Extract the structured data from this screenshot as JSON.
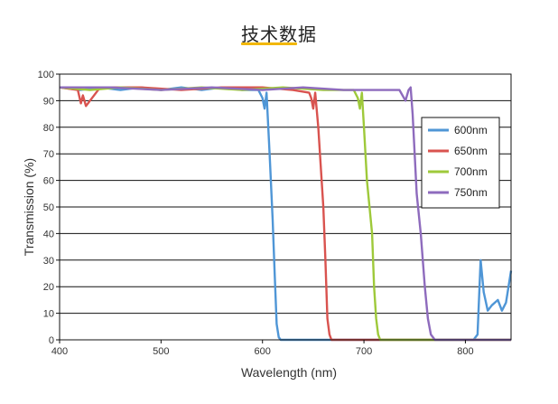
{
  "header": {
    "title": "技术数据"
  },
  "colors": {
    "accent_underline": "#f2b705"
  },
  "chart_data": {
    "type": "line",
    "title": "",
    "xlabel": "Wavelength (nm)",
    "ylabel": "Transmission (%)",
    "xlim": [
      400,
      845
    ],
    "ylim": [
      0,
      100
    ],
    "x_ticks": [
      400,
      500,
      600,
      700,
      800
    ],
    "y_ticks": [
      0,
      10,
      20,
      30,
      40,
      50,
      60,
      70,
      80,
      90,
      100
    ],
    "grid": "horizontal",
    "legend_position": "right",
    "series": [
      {
        "name": "600nm",
        "color": "#4f96d6",
        "x": [
          400,
          420,
          440,
          460,
          480,
          500,
          520,
          540,
          560,
          580,
          596,
          600,
          602,
          604,
          607,
          610,
          612,
          614,
          616,
          618,
          630,
          700,
          780,
          808,
          812,
          815,
          818,
          822,
          826,
          832,
          836,
          840,
          845
        ],
        "y": [
          95,
          94,
          95,
          94,
          95,
          94,
          95,
          94,
          95,
          94,
          94,
          91,
          87,
          93,
          70,
          45,
          25,
          6,
          1,
          0,
          0,
          0,
          0,
          0,
          2,
          30,
          18,
          11,
          13,
          15,
          11,
          14,
          26
        ]
      },
      {
        "name": "650nm",
        "color": "#d9534f",
        "x": [
          400,
          418,
          421,
          423,
          426,
          440,
          480,
          520,
          560,
          600,
          630,
          646,
          648,
          650,
          652,
          655,
          660,
          662,
          664,
          666,
          668,
          670,
          680,
          845
        ],
        "y": [
          95,
          94,
          89,
          92,
          88,
          95,
          95,
          94,
          95,
          95,
          94,
          93,
          91,
          87,
          93,
          80,
          50,
          30,
          8,
          2,
          0,
          0,
          0,
          0
        ]
      },
      {
        "name": "700nm",
        "color": "#9ec93a",
        "x": [
          400,
          430,
          460,
          500,
          540,
          580,
          620,
          660,
          690,
          694,
          696,
          698,
          700,
          703,
          708,
          710,
          712,
          714,
          716,
          720,
          740,
          845
        ],
        "y": [
          95,
          94,
          95,
          94,
          95,
          94,
          95,
          94,
          94,
          91,
          87,
          93,
          80,
          60,
          40,
          20,
          8,
          2,
          0,
          0,
          0,
          0
        ]
      },
      {
        "name": "750nm",
        "color": "#8e6bbd",
        "x": [
          400,
          450,
          500,
          550,
          600,
          640,
          680,
          720,
          735,
          741,
          744,
          746,
          748,
          752,
          756,
          760,
          763,
          766,
          770,
          780,
          800,
          845
        ],
        "y": [
          95,
          95,
          94,
          95,
          94,
          95,
          94,
          94,
          94,
          90,
          94,
          95,
          85,
          55,
          40,
          20,
          8,
          2,
          0,
          0,
          0,
          0
        ]
      }
    ]
  }
}
